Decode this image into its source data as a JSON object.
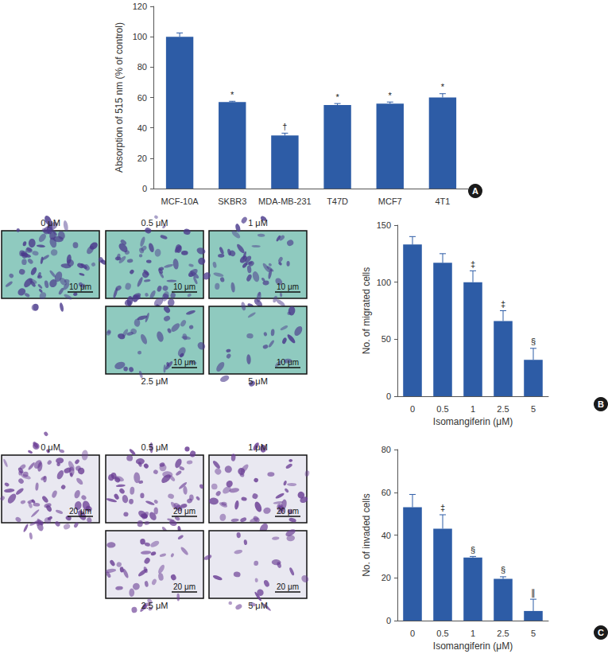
{
  "chart_data": [
    {
      "type": "bar",
      "panel_label": "A",
      "categories": [
        "MCF-10A",
        "SKBR3",
        "MDA-MB-231",
        "T47D",
        "MCF7",
        "4T1"
      ],
      "values": [
        100,
        57,
        35,
        55,
        56,
        60
      ],
      "errors": [
        2.5,
        0.5,
        1.5,
        1,
        1,
        2.5
      ],
      "annotations": [
        null,
        "*",
        "†",
        "*",
        "*",
        "*"
      ],
      "y_label": "Absorption of 515 nm (% of control)",
      "color": "#2d5ca6",
      "ylim": [
        0,
        120
      ],
      "yticks": [
        0,
        20,
        40,
        60,
        80,
        100,
        120
      ],
      "grid": false
    },
    {
      "type": "bar",
      "panel_label": "B",
      "categories": [
        "0",
        "0.5",
        "1",
        "2.5",
        "5"
      ],
      "values": [
        133,
        117,
        100,
        66,
        32
      ],
      "errors": [
        7,
        8,
        10,
        9,
        10
      ],
      "annotations": [
        null,
        null,
        "‡",
        "‡",
        "§"
      ],
      "x_label": "Isomangiferin (μM)",
      "y_label": "No. of migrated cells",
      "color": "#2d5ca6",
      "ylim": [
        0,
        150
      ],
      "yticks": [
        0,
        50,
        100,
        150
      ],
      "grid": false
    },
    {
      "type": "bar",
      "panel_label": "C",
      "categories": [
        "0",
        "0.5",
        "1",
        "2.5",
        "5"
      ],
      "values": [
        53,
        43,
        29.5,
        19.5,
        4.5
      ],
      "errors": [
        6,
        6.5,
        0.5,
        1,
        5.5
      ],
      "annotations": [
        null,
        "‡",
        "§",
        "§",
        "∥"
      ],
      "x_label": "Isomangiferin (μM)",
      "y_label": "No. of invaded cells",
      "color": "#2d5ca6",
      "ylim": [
        0,
        80
      ],
      "yticks": [
        0,
        20,
        40,
        60,
        80
      ],
      "grid": false
    }
  ],
  "micrographs": [
    {
      "panel": "B",
      "scale_bar": "10 μm",
      "labels": [
        "0 μM",
        "0.5 μM",
        "1 μM",
        "2.5 μM",
        "5 μM"
      ]
    },
    {
      "panel": "C",
      "scale_bar": "20 μm",
      "labels": [
        "0 μM",
        "0.5 μM",
        "1 μM",
        "2.5 μM",
        "5 μM"
      ]
    }
  ]
}
